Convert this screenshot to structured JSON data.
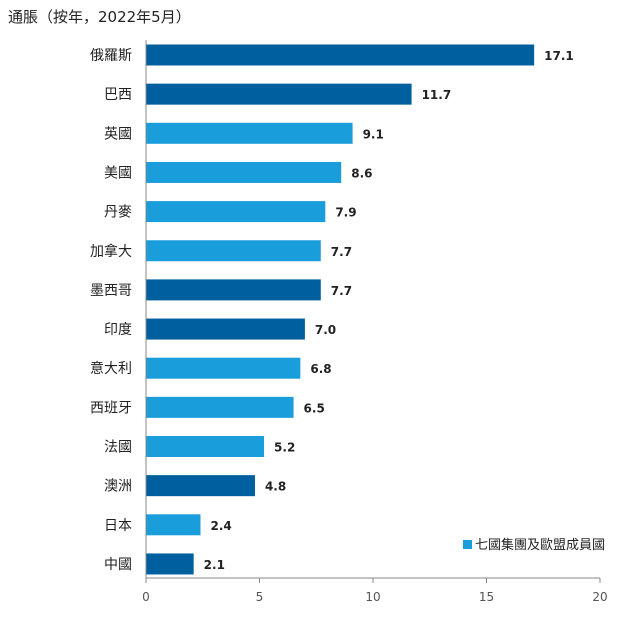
{
  "chart_data": {
    "type": "bar",
    "orientation": "horizontal",
    "title": "通脹（按年，2022年5月）",
    "categories": [
      "俄羅斯",
      "巴西",
      "英國",
      "美國",
      "丹麥",
      "加拿大",
      "墨西哥",
      "印度",
      "意大利",
      "西班牙",
      "法國",
      "澳洲",
      "日本",
      "中國"
    ],
    "values": [
      17.1,
      11.7,
      9.1,
      8.6,
      7.9,
      7.7,
      7.7,
      7.0,
      6.8,
      6.5,
      5.2,
      4.8,
      2.4,
      2.1
    ],
    "value_labels": [
      "17.1",
      "11.7",
      "9.1",
      "8.6",
      "7.9",
      "7.7",
      "7.7",
      "7.0",
      "6.8",
      "6.5",
      "5.2",
      "4.8",
      "2.4",
      "2.1"
    ],
    "group": [
      "other",
      "other",
      "g7eu",
      "g7eu",
      "g7eu",
      "g7eu",
      "other",
      "other",
      "g7eu",
      "g7eu",
      "g7eu",
      "other",
      "g7eu",
      "other"
    ],
    "xlim": [
      0,
      20
    ],
    "xticks": [
      0,
      5,
      10,
      15,
      20
    ],
    "xtick_labels": [
      "0",
      "5",
      "10",
      "15",
      "20"
    ],
    "legend": {
      "label": "七國集團及歐盟成員國",
      "position": "bottom-right"
    },
    "colors": {
      "g7eu": "#1a9ddb",
      "other": "#005f9e",
      "axis": "#888888"
    },
    "grid": false
  }
}
